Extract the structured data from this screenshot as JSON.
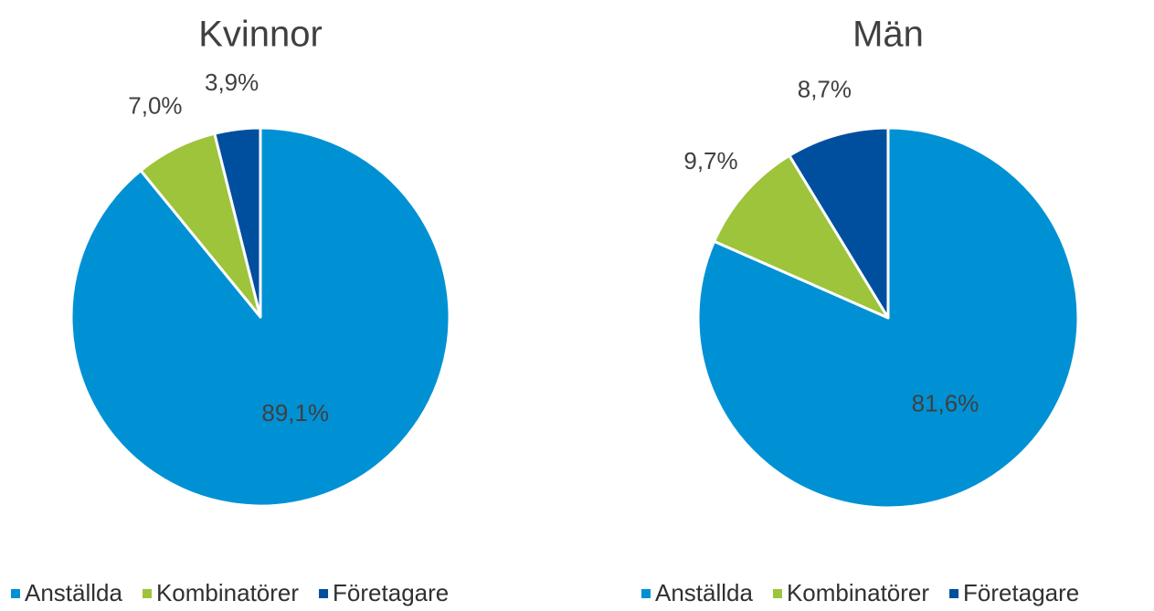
{
  "chart_data": [
    {
      "type": "pie",
      "title": "Kvinnor",
      "categories": [
        "Anställda",
        "Kombinatörer",
        "Företagare"
      ],
      "values": [
        89.1,
        7.0,
        3.9
      ],
      "value_labels": [
        "89,1%",
        "7,0%",
        "3,9%"
      ],
      "colors": [
        "#0091d5",
        "#9dc43a",
        "#004f9f"
      ]
    },
    {
      "type": "pie",
      "title": "Män",
      "categories": [
        "Anställda",
        "Kombinatörer",
        "Företagare"
      ],
      "values": [
        81.6,
        9.7,
        8.7
      ],
      "value_labels": [
        "81,6%",
        "9,7%",
        "8,7%"
      ],
      "colors": [
        "#0091d5",
        "#9dc43a",
        "#004f9f"
      ]
    }
  ]
}
